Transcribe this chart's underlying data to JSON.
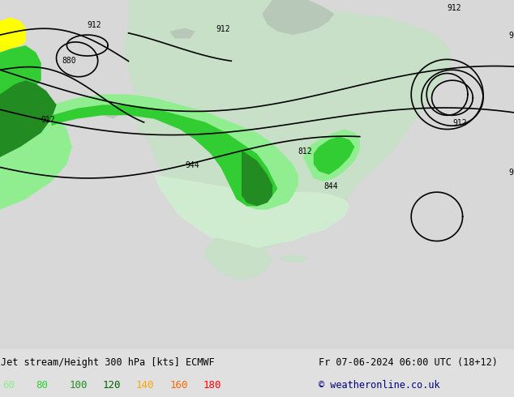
{
  "title_left": "Jet stream/Height 300 hPa [kts] ECMWF",
  "title_right": "Fr 07-06-2024 06:00 UTC (18+12)",
  "copyright": "© weatheronline.co.uk",
  "legend_values": [
    60,
    80,
    100,
    120,
    140,
    160,
    180
  ],
  "legend_colors": [
    "#90ee90",
    "#32cd32",
    "#228b22",
    "#006400",
    "#ffa500",
    "#ff4500",
    "#ff0000"
  ],
  "bg_color": "#e8e8e8",
  "map_bg": "#f0f0f0",
  "land_color": "#c8e6c8",
  "ocean_color": "#dcdcdc",
  "contour_color": "#000000",
  "jet_colors_60_80": "#90ee90",
  "jet_colors_80_100": "#32cd32",
  "jet_colors_100_120": "#228b22",
  "bottom_bar_color": "#d0d0d0",
  "figsize": [
    6.34,
    4.9
  ],
  "dpi": 100
}
